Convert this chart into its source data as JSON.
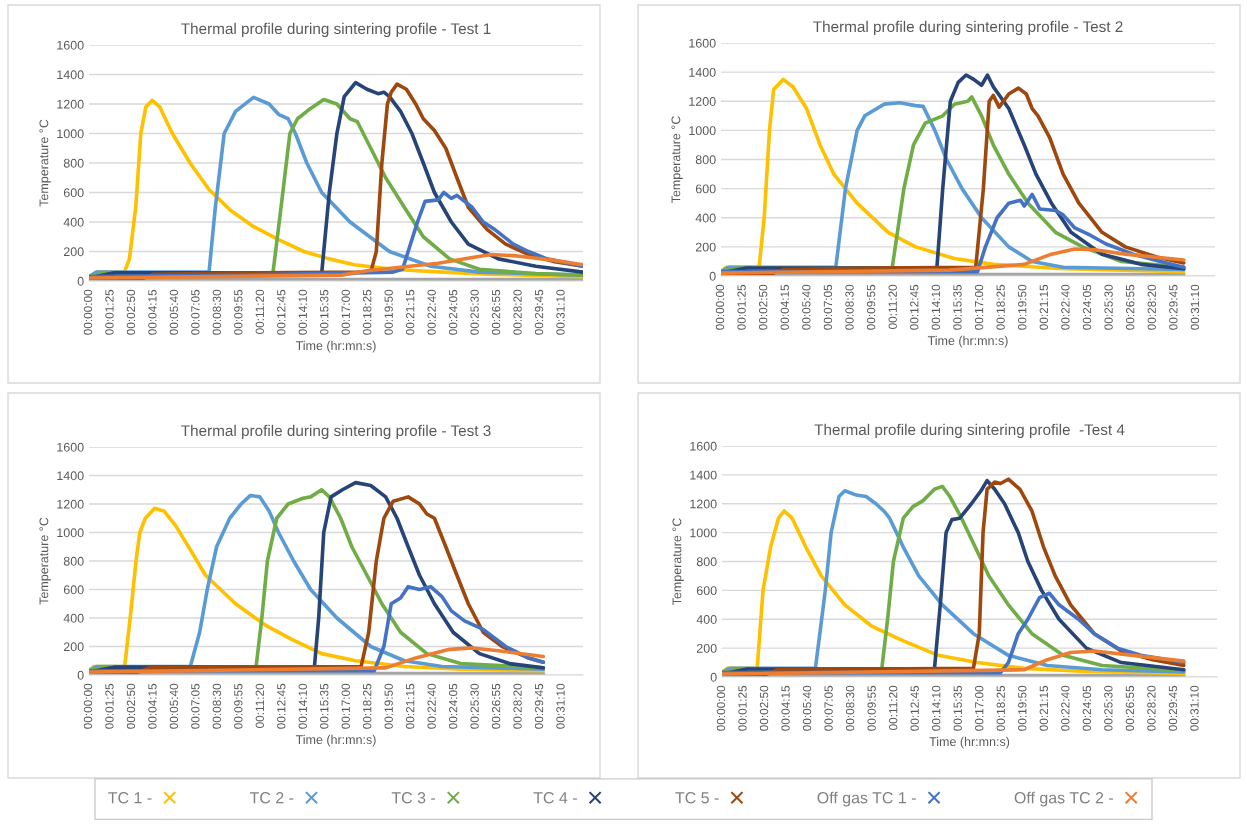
{
  "chart_data": [
    {
      "type": "line",
      "title": "Thermal profile during sintering profile - Test 1",
      "xlabel": "Time (hr:mn:s)",
      "ylabel": "Temperature °C",
      "xlim": [
        0,
        1955
      ],
      "ylim": [
        0,
        1600
      ],
      "yticks": [
        0,
        200,
        400,
        600,
        800,
        1000,
        1200,
        1400,
        1600
      ],
      "grid": "y",
      "legend": "bottom",
      "xticks": [
        {
          "value": 0,
          "label": "00:00:00"
        },
        {
          "value": 85,
          "label": "00:01:25"
        },
        {
          "value": 170,
          "label": "00:02:50"
        },
        {
          "value": 255,
          "label": "00:04:15"
        },
        {
          "value": 340,
          "label": "00:05:40"
        },
        {
          "value": 425,
          "label": "00:07:05"
        },
        {
          "value": 510,
          "label": "00:08:30"
        },
        {
          "value": 595,
          "label": "00:09:55"
        },
        {
          "value": 680,
          "label": "00:11:20"
        },
        {
          "value": 765,
          "label": "00:12:45"
        },
        {
          "value": 850,
          "label": "00:14:10"
        },
        {
          "value": 935,
          "label": "00:15:35"
        },
        {
          "value": 1020,
          "label": "00:17:00"
        },
        {
          "value": 1105,
          "label": "00:18:25"
        },
        {
          "value": 1190,
          "label": "00:19:50"
        },
        {
          "value": 1275,
          "label": "00:21:15"
        },
        {
          "value": 1360,
          "label": "00:22:40"
        },
        {
          "value": 1445,
          "label": "00:24:05"
        },
        {
          "value": 1530,
          "label": "00:25:30"
        },
        {
          "value": 1615,
          "label": "00:26:55"
        },
        {
          "value": 1700,
          "label": "00:28:20"
        },
        {
          "value": 1785,
          "label": "00:29:45"
        },
        {
          "value": 1870,
          "label": "00:31:10"
        }
      ],
      "series": [
        {
          "color": "#a5a5a5",
          "x": [
            0,
            1955
          ],
          "values": [
            10,
            10
          ]
        },
        {
          "name": "TC 1 -",
          "color": "#ffc000",
          "x": [
            0,
            30,
            140,
            160,
            185,
            205,
            225,
            250,
            280,
            330,
            400,
            475,
            560,
            650,
            750,
            850,
            950,
            1050,
            1200,
            1400,
            1600,
            1955
          ],
          "values": [
            30,
            60,
            60,
            150,
            500,
            1000,
            1180,
            1225,
            1180,
            1000,
            800,
            620,
            480,
            370,
            280,
            200,
            150,
            110,
            80,
            60,
            45,
            30
          ]
        },
        {
          "name": "TC 2 -",
          "color": "#5b9bd5",
          "x": [
            0,
            30,
            475,
            500,
            535,
            580,
            651,
            713,
            750,
            788,
            817,
            862,
            921,
            1033,
            1189,
            1352,
            1545,
            1955
          ],
          "values": [
            30,
            60,
            60,
            500,
            1000,
            1150,
            1245,
            1200,
            1130,
            1100,
            1000,
            800,
            600,
            400,
            200,
            100,
            60,
            40
          ]
        },
        {
          "name": "TC 3 -",
          "color": "#70ad47",
          "x": [
            0,
            60,
            728,
            760,
            795,
            825,
            877,
            929,
            981,
            1033,
            1062,
            1115,
            1174,
            1248,
            1323,
            1427,
            1545,
            1768,
            1955
          ],
          "values": [
            30,
            55,
            55,
            500,
            1000,
            1100,
            1170,
            1230,
            1200,
            1100,
            1080,
            900,
            700,
            500,
            300,
            150,
            80,
            50,
            40
          ]
        },
        {
          "name": "TC 4 -",
          "color": "#264478",
          "x": [
            0,
            100,
            921,
            951,
            981,
            1010,
            1055,
            1100,
            1144,
            1167,
            1189,
            1233,
            1278,
            1323,
            1367,
            1434,
            1501,
            1620,
            1768,
            1955
          ],
          "values": [
            20,
            55,
            55,
            600,
            1000,
            1250,
            1345,
            1300,
            1270,
            1280,
            1250,
            1150,
            1000,
            800,
            600,
            400,
            250,
            150,
            100,
            60
          ]
        },
        {
          "name": "TC 5 -",
          "color": "#9e480e",
          "x": [
            0,
            215,
            253,
            600,
            1115,
            1137,
            1159,
            1181,
            1196,
            1219,
            1256,
            1293,
            1323,
            1367,
            1412,
            1456,
            1501,
            1575,
            1649,
            1739,
            1843,
            1955
          ],
          "values": [
            20,
            20,
            45,
            55,
            60,
            200,
            800,
            1200,
            1280,
            1335,
            1300,
            1200,
            1100,
            1020,
            900,
            700,
            500,
            350,
            250,
            180,
            130,
            100
          ]
        },
        {
          "name": "Off gas TC 1 -",
          "color": "#4472c4",
          "x": [
            0,
            600,
            1200,
            1241,
            1263,
            1300,
            1330,
            1382,
            1404,
            1434,
            1456,
            1516,
            1560,
            1605,
            1679,
            1739,
            1813,
            1955
          ],
          "values": [
            30,
            40,
            60,
            80,
            200,
            400,
            540,
            550,
            600,
            560,
            580,
            500,
            400,
            350,
            250,
            200,
            150,
            100
          ]
        },
        {
          "name": "Off gas TC 2 -",
          "color": "#ed7d31",
          "x": [
            0,
            1000,
            1100,
            1382,
            1590,
            1694,
            1843,
            1955
          ],
          "values": [
            20,
            40,
            70,
            120,
            180,
            170,
            140,
            110
          ]
        }
      ]
    },
    {
      "type": "line",
      "title": "Thermal profile during sintering profile - Test 2",
      "xlabel": "Time (hr:mn:s)",
      "ylabel": "Temperature °C",
      "xlim": [
        0,
        1945
      ],
      "ylim": [
        0,
        1600
      ],
      "yticks": [
        0,
        200,
        400,
        600,
        800,
        1000,
        1200,
        1400,
        1600
      ],
      "grid": "y",
      "xticks": [
        {
          "value": 0,
          "label": "00:00:00"
        },
        {
          "value": 85,
          "label": "00:01:25"
        },
        {
          "value": 170,
          "label": "00:02:50"
        },
        {
          "value": 255,
          "label": "00:04:15"
        },
        {
          "value": 340,
          "label": "00:05:40"
        },
        {
          "value": 425,
          "label": "00:07:05"
        },
        {
          "value": 510,
          "label": "00:08:30"
        },
        {
          "value": 595,
          "label": "00:09:55"
        },
        {
          "value": 680,
          "label": "00:11:20"
        },
        {
          "value": 765,
          "label": "00:12:45"
        },
        {
          "value": 850,
          "label": "00:14:10"
        },
        {
          "value": 935,
          "label": "00:15:35"
        },
        {
          "value": 1020,
          "label": "00:17:00"
        },
        {
          "value": 1105,
          "label": "00:18:25"
        },
        {
          "value": 1190,
          "label": "00:19:50"
        },
        {
          "value": 1275,
          "label": "00:21:15"
        },
        {
          "value": 1360,
          "label": "00:22:40"
        },
        {
          "value": 1445,
          "label": "00:24:05"
        },
        {
          "value": 1530,
          "label": "00:25:30"
        },
        {
          "value": 1615,
          "label": "00:26:55"
        },
        {
          "value": 1700,
          "label": "00:28:20"
        },
        {
          "value": 1785,
          "label": "00:29:45"
        },
        {
          "value": 1870,
          "label": "00:31:10"
        }
      ],
      "series": [
        {
          "color": "#a5a5a5",
          "x": [
            0,
            1822
          ],
          "values": [
            10,
            10
          ]
        },
        {
          "color": "#ffc000",
          "x": [
            0,
            20,
            150,
            170,
            191,
            207,
            245,
            283,
            337,
            390,
            444,
            536,
            658,
            766,
            919,
            1072,
            1347,
            1822
          ],
          "values": [
            30,
            60,
            60,
            400,
            1000,
            1280,
            1350,
            1300,
            1150,
            900,
            700,
            500,
            300,
            200,
            120,
            80,
            50,
            30
          ]
        },
        {
          "color": "#5b9bd5",
          "x": [
            0,
            30,
            452,
            490,
            536,
            566,
            643,
            704,
            766,
            796,
            842,
            888,
            949,
            1026,
            1133,
            1225,
            1347,
            1822
          ],
          "values": [
            30,
            60,
            60,
            600,
            1000,
            1100,
            1180,
            1190,
            1170,
            1165,
            1000,
            800,
            600,
            400,
            200,
            100,
            60,
            45
          ]
        },
        {
          "color": "#70ad47",
          "x": [
            0,
            60,
            674,
            720,
            758,
            804,
            873,
            919,
            972,
            987,
            1026,
            1072,
            1133,
            1209,
            1317,
            1424,
            1577,
            1822
          ],
          "values": [
            30,
            55,
            55,
            600,
            900,
            1050,
            1100,
            1180,
            1200,
            1230,
            1100,
            900,
            700,
            500,
            300,
            200,
            100,
            60
          ]
        },
        {
          "color": "#264478",
          "x": [
            0,
            100,
            850,
            873,
            903,
            934,
            965,
            995,
            1026,
            1049,
            1072,
            1133,
            1194,
            1240,
            1301,
            1378,
            1500,
            1653,
            1822
          ],
          "values": [
            20,
            55,
            55,
            600,
            1200,
            1330,
            1380,
            1350,
            1310,
            1380,
            1300,
            1150,
            900,
            700,
            500,
            300,
            150,
            80,
            50
          ]
        },
        {
          "color": "#9e480e",
          "x": [
            0,
            207,
            245,
            600,
            1003,
            1033,
            1056,
            1072,
            1095,
            1133,
            1171,
            1202,
            1225,
            1248,
            1294,
            1347,
            1409,
            1500,
            1592,
            1715,
            1822
          ],
          "values": [
            20,
            20,
            45,
            55,
            60,
            600,
            1200,
            1240,
            1160,
            1250,
            1290,
            1250,
            1150,
            1100,
            950,
            700,
            500,
            300,
            200,
            130,
            90
          ]
        },
        {
          "color": "#4472c4",
          "x": [
            0,
            1010,
            1041,
            1087,
            1133,
            1179,
            1194,
            1225,
            1255,
            1317,
            1347,
            1393,
            1454,
            1516,
            1623,
            1730,
            1822
          ],
          "values": [
            30,
            30,
            200,
            400,
            500,
            520,
            480,
            560,
            460,
            450,
            420,
            330,
            280,
            220,
            150,
            100,
            60
          ]
        },
        {
          "color": "#ed7d31",
          "x": [
            0,
            900,
            1194,
            1301,
            1393,
            1470,
            1592,
            1822
          ],
          "values": [
            20,
            40,
            80,
            150,
            185,
            180,
            150,
            110
          ]
        }
      ]
    },
    {
      "type": "line",
      "title": "Thermal profile during sintering profile - Test 3",
      "xlabel": "Time (hr:mn:s)",
      "ylabel": "Temperature °C",
      "xlim": [
        0,
        1955
      ],
      "ylim": [
        0,
        1600
      ],
      "yticks": [
        0,
        200,
        400,
        600,
        800,
        1000,
        1200,
        1400,
        1600
      ],
      "grid": "y",
      "xticks": [
        {
          "value": 0,
          "label": "00:00:00"
        },
        {
          "value": 85,
          "label": "00:01:25"
        },
        {
          "value": 170,
          "label": "00:02:50"
        },
        {
          "value": 255,
          "label": "00:04:15"
        },
        {
          "value": 340,
          "label": "00:05:40"
        },
        {
          "value": 425,
          "label": "00:07:05"
        },
        {
          "value": 510,
          "label": "00:08:30"
        },
        {
          "value": 595,
          "label": "00:09:55"
        },
        {
          "value": 680,
          "label": "00:11:20"
        },
        {
          "value": 765,
          "label": "00:12:45"
        },
        {
          "value": 850,
          "label": "00:14:10"
        },
        {
          "value": 935,
          "label": "00:15:35"
        },
        {
          "value": 1020,
          "label": "00:17:00"
        },
        {
          "value": 1105,
          "label": "00:18:25"
        },
        {
          "value": 1190,
          "label": "00:19:50"
        },
        {
          "value": 1275,
          "label": "00:21:15"
        },
        {
          "value": 1360,
          "label": "00:22:40"
        },
        {
          "value": 1445,
          "label": "00:24:05"
        },
        {
          "value": 1530,
          "label": "00:25:30"
        },
        {
          "value": 1615,
          "label": "00:26:55"
        },
        {
          "value": 1700,
          "label": "00:28:20"
        },
        {
          "value": 1785,
          "label": "00:29:45"
        },
        {
          "value": 1870,
          "label": "00:31:10"
        }
      ],
      "series": [
        {
          "color": "#a5a5a5",
          "x": [
            0,
            1798
          ],
          "values": [
            10,
            10
          ]
        },
        {
          "color": "#ffc000",
          "x": [
            0,
            20,
            141,
            163,
            186,
            201,
            223,
            260,
            297,
            342,
            394,
            461,
            580,
            698,
            802,
            921,
            1055,
            1248,
            1471,
            1798
          ],
          "values": [
            30,
            60,
            60,
            400,
            800,
            1000,
            1100,
            1170,
            1150,
            1050,
            900,
            700,
            500,
            350,
            250,
            150,
            100,
            60,
            40,
            30
          ]
        },
        {
          "color": "#5b9bd5",
          "x": [
            0,
            30,
            401,
            438,
            468,
            505,
            557,
            602,
            639,
            676,
            713,
            750,
            810,
            877,
            981,
            1115,
            1248,
            1397,
            1798
          ],
          "values": [
            30,
            60,
            60,
            300,
            600,
            900,
            1100,
            1200,
            1260,
            1250,
            1150,
            1000,
            800,
            600,
            400,
            200,
            100,
            60,
            40
          ]
        },
        {
          "color": "#70ad47",
          "x": [
            0,
            60,
            661,
            684,
            706,
            743,
            788,
            847,
            877,
            921,
            951,
            996,
            1040,
            1100,
            1159,
            1233,
            1337,
            1471,
            1798
          ],
          "values": [
            30,
            55,
            55,
            400,
            800,
            1100,
            1200,
            1240,
            1250,
            1300,
            1250,
            1100,
            900,
            700,
            500,
            300,
            150,
            80,
            50
          ]
        },
        {
          "color": "#264478",
          "x": [
            0,
            100,
            892,
            909,
            929,
            958,
            1003,
            1055,
            1115,
            1174,
            1219,
            1263,
            1308,
            1367,
            1441,
            1545,
            1664,
            1798
          ],
          "values": [
            20,
            55,
            55,
            400,
            1000,
            1250,
            1300,
            1350,
            1330,
            1250,
            1100,
            900,
            700,
            500,
            300,
            150,
            80,
            50
          ]
        },
        {
          "color": "#9e480e",
          "x": [
            0,
            193,
            238,
            600,
            1077,
            1107,
            1137,
            1167,
            1204,
            1263,
            1308,
            1337,
            1367,
            1412,
            1456,
            1501,
            1560,
            1635,
            1739,
            1798
          ],
          "values": [
            20,
            20,
            50,
            55,
            60,
            300,
            800,
            1100,
            1220,
            1250,
            1200,
            1130,
            1100,
            900,
            700,
            500,
            300,
            200,
            120,
            90
          ]
        },
        {
          "color": "#4472c4",
          "x": [
            0,
            1129,
            1167,
            1196,
            1233,
            1263,
            1308,
            1352,
            1397,
            1434,
            1486,
            1560,
            1649,
            1739,
            1798
          ],
          "values": [
            30,
            30,
            200,
            500,
            540,
            620,
            600,
            620,
            550,
            450,
            380,
            320,
            200,
            120,
            90
          ]
        },
        {
          "color": "#ed7d31",
          "x": [
            0,
            1174,
            1293,
            1427,
            1516,
            1620,
            1798
          ],
          "values": [
            20,
            50,
            120,
            180,
            190,
            170,
            130
          ]
        }
      ]
    },
    {
      "type": "line",
      "title": "Thermal profile during sintering profile  -Test 4",
      "xlabel": "Time (hr:mn:s)",
      "ylabel": "Temperature °C",
      "xlim": [
        0,
        1955
      ],
      "ylim": [
        0,
        1600
      ],
      "yticks": [
        0,
        200,
        400,
        600,
        800,
        1000,
        1200,
        1400,
        1600
      ],
      "grid": "y",
      "xticks": [
        {
          "value": 0,
          "label": "00:00:00"
        },
        {
          "value": 85,
          "label": "00:01:25"
        },
        {
          "value": 170,
          "label": "00:02:50"
        },
        {
          "value": 255,
          "label": "00:04:15"
        },
        {
          "value": 340,
          "label": "00:05:40"
        },
        {
          "value": 425,
          "label": "00:07:05"
        },
        {
          "value": 510,
          "label": "00:08:30"
        },
        {
          "value": 595,
          "label": "00:09:55"
        },
        {
          "value": 680,
          "label": "00:11:20"
        },
        {
          "value": 765,
          "label": "00:12:45"
        },
        {
          "value": 850,
          "label": "00:14:10"
        },
        {
          "value": 935,
          "label": "00:15:35"
        },
        {
          "value": 1020,
          "label": "00:17:00"
        },
        {
          "value": 1105,
          "label": "00:18:25"
        },
        {
          "value": 1190,
          "label": "00:19:50"
        },
        {
          "value": 1275,
          "label": "00:21:15"
        },
        {
          "value": 1360,
          "label": "00:22:40"
        },
        {
          "value": 1445,
          "label": "00:24:05"
        },
        {
          "value": 1530,
          "label": "00:25:30"
        },
        {
          "value": 1615,
          "label": "00:26:55"
        },
        {
          "value": 1700,
          "label": "00:28:20"
        },
        {
          "value": 1785,
          "label": "00:29:45"
        },
        {
          "value": 1870,
          "label": "00:31:10"
        }
      ],
      "series": [
        {
          "color": "#a5a5a5",
          "x": [
            0,
            1824
          ],
          "values": [
            10,
            10
          ]
        },
        {
          "color": "#ffc000",
          "x": [
            0,
            20,
            139,
            162,
            192,
            223,
            246,
            277,
            331,
            392,
            485,
            593,
            716,
            854,
            1008,
            1193,
            1424,
            1824
          ],
          "values": [
            30,
            60,
            60,
            600,
            900,
            1100,
            1150,
            1100,
            900,
            700,
            500,
            350,
            250,
            150,
            100,
            60,
            40,
            25
          ]
        },
        {
          "color": "#5b9bd5",
          "x": [
            0,
            30,
            369,
            408,
            431,
            462,
            485,
            531,
            569,
            608,
            639,
            662,
            716,
            777,
            870,
            993,
            1131,
            1285,
            1501,
            1824
          ],
          "values": [
            30,
            60,
            60,
            600,
            1000,
            1250,
            1290,
            1260,
            1250,
            1200,
            1150,
            1100,
            900,
            700,
            500,
            300,
            150,
            80,
            50,
            35
          ]
        },
        {
          "color": "#70ad47",
          "x": [
            0,
            60,
            631,
            654,
            677,
            716,
            754,
            793,
            839,
            870,
            900,
            946,
            1000,
            1054,
            1131,
            1224,
            1347,
            1501,
            1824
          ],
          "values": [
            30,
            55,
            55,
            400,
            800,
            1100,
            1180,
            1220,
            1300,
            1320,
            1250,
            1100,
            900,
            700,
            500,
            300,
            150,
            80,
            45
          ]
        },
        {
          "color": "#264478",
          "x": [
            0,
            100,
            839,
            862,
            885,
            908,
            939,
            985,
            1023,
            1047,
            1077,
            1116,
            1170,
            1208,
            1262,
            1331,
            1439,
            1577,
            1824
          ],
          "values": [
            20,
            55,
            55,
            500,
            1000,
            1090,
            1100,
            1200,
            1290,
            1360,
            1300,
            1200,
            1000,
            800,
            600,
            400,
            200,
            100,
            50
          ]
        },
        {
          "color": "#9e480e",
          "x": [
            0,
            177,
            215,
            600,
            993,
            1016,
            1031,
            1047,
            1077,
            1100,
            1131,
            1177,
            1224,
            1270,
            1316,
            1377,
            1470,
            1577,
            1701,
            1824
          ],
          "values": [
            20,
            20,
            50,
            55,
            60,
            300,
            1000,
            1300,
            1350,
            1340,
            1370,
            1300,
            1150,
            900,
            700,
            500,
            300,
            180,
            120,
            80
          ]
        },
        {
          "color": "#4472c4",
          "x": [
            0,
            1100,
            1131,
            1170,
            1208,
            1254,
            1293,
            1331,
            1408,
            1470,
            1516,
            1562,
            1654,
            1824
          ],
          "values": [
            30,
            30,
            100,
            300,
            400,
            550,
            580,
            500,
            400,
            300,
            250,
            200,
            150,
            100
          ]
        },
        {
          "color": "#ed7d31",
          "x": [
            0,
            1193,
            1285,
            1377,
            1470,
            1624,
            1824
          ],
          "values": [
            20,
            50,
            120,
            170,
            180,
            150,
            110
          ]
        }
      ]
    }
  ]
}
